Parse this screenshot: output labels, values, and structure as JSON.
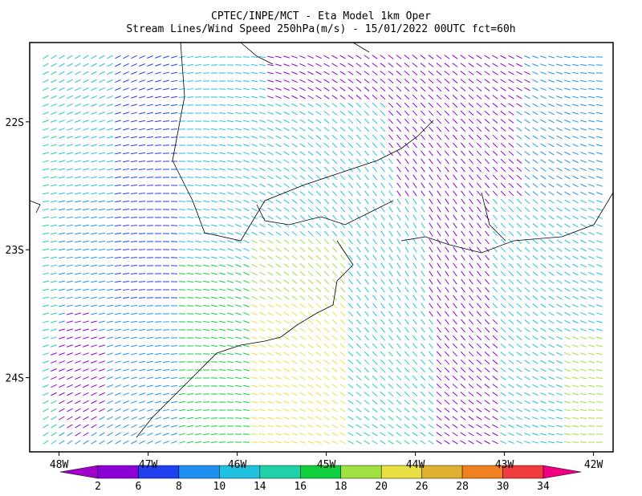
{
  "title": [
    "CPTEC/INPE/MCT -  Eta Model 1km Oper",
    "Stream Lines/Wind Speed 250hPa(m/s) - 15/01/2022 00UTC fct=60h"
  ],
  "lonlim": [
    -48.33,
    -41.78
  ],
  "latlim": [
    -21.38,
    -24.58
  ],
  "lonticks": [
    {
      "value": -48,
      "label": "48W"
    },
    {
      "value": -47,
      "label": "47W"
    },
    {
      "value": -46,
      "label": "46W"
    },
    {
      "value": -45,
      "label": "45W"
    },
    {
      "value": -44,
      "label": "44W"
    },
    {
      "value": -43,
      "label": "43W"
    },
    {
      "value": -42,
      "label": "42W"
    }
  ],
  "latticks": [
    {
      "value": -22,
      "label": "22S"
    },
    {
      "value": -23,
      "label": "23S"
    },
    {
      "value": -24,
      "label": "24S"
    }
  ],
  "colorbar": {
    "levels": [
      2,
      6,
      8,
      10,
      14,
      16,
      18,
      20,
      26,
      28,
      30,
      34
    ],
    "colors": [
      "#a000c8",
      "#8c00d8",
      "#2040f0",
      "#2090f0",
      "#20c0e0",
      "#20d0a8",
      "#10d040",
      "#a0e040",
      "#e8e040",
      "#e0b030",
      "#f08020",
      "#f03c3c",
      "#f00080"
    ]
  }
}
